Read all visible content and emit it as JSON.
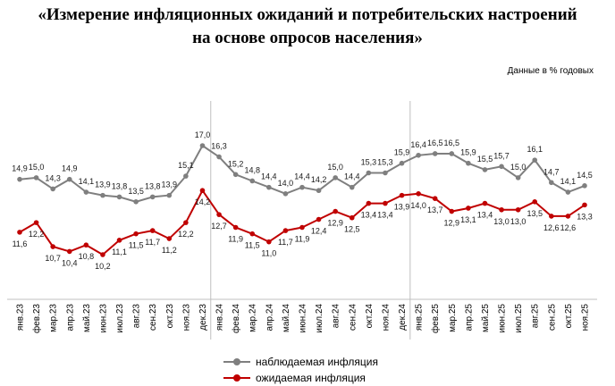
{
  "title_line1": "«Измерение инфляционных ожиданий и потребительских настроений",
  "title_line2": "на основе опросов населения»",
  "units_note": "Данные в % годовых",
  "chart_data": {
    "type": "line",
    "categories": [
      "янв.23",
      "фев.23",
      "мар.23",
      "апр.23",
      "май.23",
      "июн.23",
      "июл.23",
      "авг.23",
      "сен.23",
      "окт.23",
      "ноя.23",
      "дек.23",
      "янв.24",
      "фев.24",
      "мар.24",
      "апр.24",
      "май.24",
      "июн.24",
      "июл.24",
      "авг.24",
      "сен.24",
      "окт.24",
      "ноя.24",
      "дек.24",
      "янв.25",
      "фев.25",
      "мар.25",
      "апр.25",
      "май.25",
      "июн.25",
      "июл.25",
      "авг.25",
      "сен.25",
      "окт.25",
      "ноя.25"
    ],
    "series": [
      {
        "name": "наблюдаемая инфляция",
        "color": "#7f7f7f",
        "values": [
          14.9,
          15.0,
          14.3,
          14.9,
          14.1,
          13.9,
          13.8,
          13.5,
          13.8,
          13.9,
          15.1,
          17.0,
          16.3,
          15.2,
          14.8,
          14.4,
          14.0,
          14.4,
          14.2,
          15.0,
          14.4,
          15.3,
          15.3,
          15.9,
          16.4,
          16.5,
          16.5,
          15.9,
          15.5,
          15.7,
          15.0,
          16.1,
          14.7,
          14.1,
          14.5
        ],
        "labels": [
          "14,9",
          "15,0",
          "14,3",
          "14,9",
          "14,1",
          "13,9",
          "13,8",
          "13,5",
          "13,8",
          "13,9",
          "15,1",
          "17,0",
          "16,3",
          "15,2",
          "14,8",
          "14,4",
          "14,0",
          "14,4",
          "14,2",
          "15,0",
          "14,4",
          "15,3",
          "15,3",
          "15,9",
          "16,4",
          "16,5",
          "16,5",
          "15,9",
          "15,5",
          "15,7",
          "15,0",
          "16,1",
          "14,7",
          "14,1",
          "14,5"
        ]
      },
      {
        "name": "ожидаемая инфляция",
        "color": "#c00000",
        "values": [
          11.6,
          12.2,
          10.7,
          10.4,
          10.8,
          10.2,
          11.1,
          11.5,
          11.7,
          11.2,
          12.2,
          14.2,
          12.7,
          11.9,
          11.5,
          11.0,
          11.7,
          11.9,
          12.4,
          12.9,
          12.5,
          13.4,
          13.4,
          13.9,
          14.0,
          13.7,
          12.9,
          13.1,
          13.4,
          13.0,
          13.0,
          13.5,
          12.6,
          12.6,
          13.3
        ],
        "labels": [
          "11,6",
          "12,2",
          "10,7",
          "10,4",
          "10,8",
          "10,2",
          "11,1",
          "11,5",
          "11,7",
          "11,2",
          "12,2",
          "14,2",
          "12,7",
          "11,9",
          "11,5",
          "11,0",
          "11,7",
          "11,9",
          "12,4",
          "12,9",
          "12,5",
          "13,4",
          "13,4",
          "13,9",
          "14,0",
          "13,7",
          "12,9",
          "13,1",
          "13,4",
          "13,0",
          "13,0",
          "13,5",
          "12,6",
          "12,6",
          "13,3"
        ]
      }
    ],
    "year_separators_after": [
      "дек.23",
      "дек.24"
    ],
    "grid": false
  }
}
